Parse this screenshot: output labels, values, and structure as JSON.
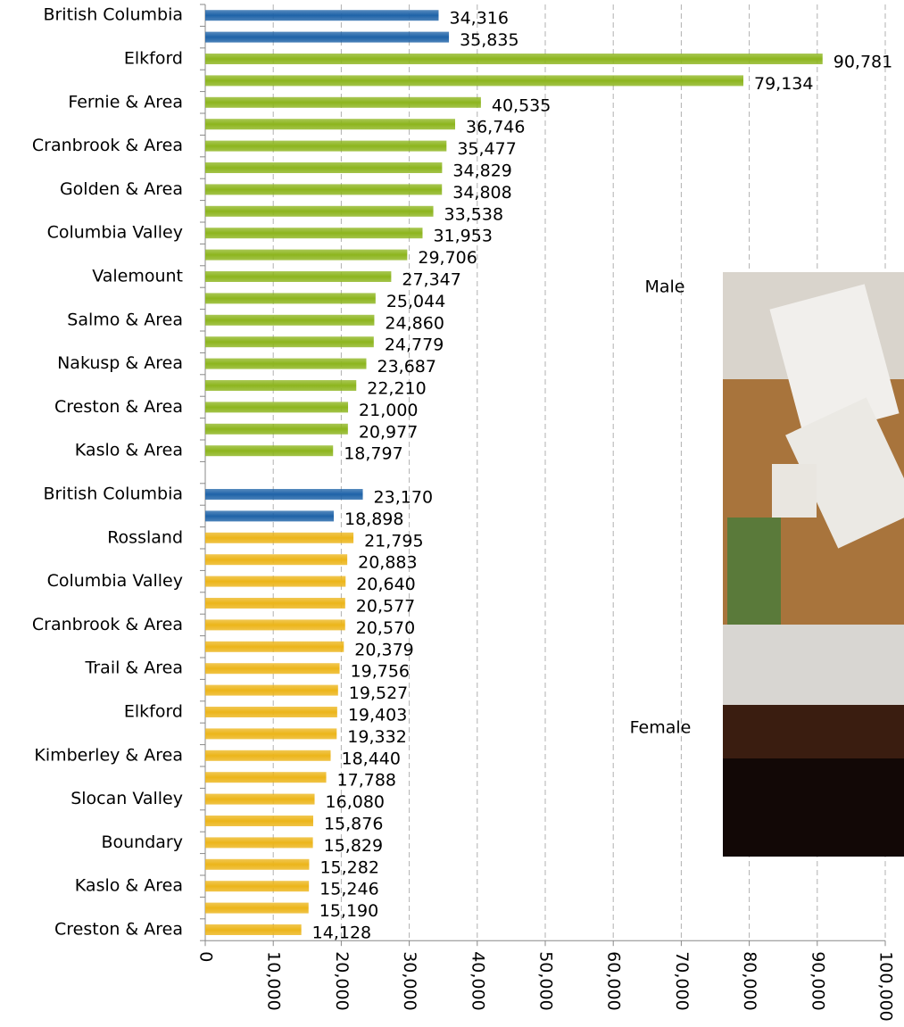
{
  "chart_data": {
    "type": "bar",
    "orientation": "horizontal",
    "categories": [
      "British Columbia",
      null,
      "Elkford",
      null,
      "Fernie & Area",
      null,
      "Cranbrook & Area",
      null,
      "Golden & Area",
      null,
      "Columbia Valley",
      null,
      "Valemount",
      null,
      "Salmo & Area",
      null,
      "Nakusp & Area",
      null,
      "Creston & Area",
      null,
      "Kaslo & Area",
      null,
      "British Columbia",
      null,
      "Rossland",
      null,
      "Columbia Valley",
      null,
      "Cranbrook & Area",
      null,
      "Trail & Area",
      null,
      "Elkford",
      null,
      "Kimberley & Area",
      null,
      "Slocan Valley",
      null,
      "Boundary",
      null,
      "Kaslo & Area",
      null,
      "Creston & Area"
    ],
    "values": [
      34316,
      35835,
      90781,
      79134,
      40535,
      36746,
      35477,
      34829,
      34808,
      33538,
      31953,
      29706,
      27347,
      25044,
      24860,
      24779,
      23687,
      22210,
      21000,
      20977,
      18797,
      null,
      23170,
      18898,
      21795,
      20883,
      20640,
      20577,
      20570,
      20379,
      19756,
      19527,
      19403,
      19332,
      18440,
      17788,
      16080,
      15876,
      15829,
      15282,
      15246,
      15190,
      14128
    ],
    "value_labels": [
      "34,316",
      "35,835",
      "90,781",
      "79,134",
      "40,535",
      "36,746",
      "35,477",
      "34,829",
      "34,808",
      "33,538",
      "31,953",
      "29,706",
      "27,347",
      "25,044",
      "24,860",
      "24,779",
      "23,687",
      "22,210",
      "21,000",
      "20,977",
      "18,797",
      null,
      "23,170",
      "18,898",
      "21,795",
      "20,883",
      "20,640",
      "20,577",
      "20,570",
      "20,379",
      "19,756",
      "19,527",
      "19,403",
      "19,332",
      "18,440",
      "17,788",
      "16,080",
      "15,876",
      "15,829",
      "15,282",
      "15,246",
      "15,190",
      "14,128"
    ],
    "colors": [
      "#1f63a8",
      "#1f63a8",
      "#8db51e",
      "#8db51e",
      "#8db51e",
      "#8db51e",
      "#8db51e",
      "#8db51e",
      "#8db51e",
      "#8db51e",
      "#8db51e",
      "#8db51e",
      "#8db51e",
      "#8db51e",
      "#8db51e",
      "#8db51e",
      "#8db51e",
      "#8db51e",
      "#8db51e",
      "#8db51e",
      "#8db51e",
      null,
      "#1f63a8",
      "#1f63a8",
      "#ecb51a",
      "#ecb51a",
      "#ecb51a",
      "#ecb51a",
      "#ecb51a",
      "#ecb51a",
      "#ecb51a",
      "#ecb51a",
      "#ecb51a",
      "#ecb51a",
      "#ecb51a",
      "#ecb51a",
      "#ecb51a",
      "#ecb51a",
      "#ecb51a",
      "#ecb51a",
      "#ecb51a",
      "#ecb51a",
      "#ecb51a"
    ],
    "xlim": [
      0,
      100000
    ],
    "xticks": [
      0,
      {
        "value": 10000,
        "label": "10,000"
      },
      {
        "value": 20000,
        "label": "20,000"
      },
      {
        "value": 30000,
        "label": "30,000"
      },
      {
        "value": 40000,
        "label": "40,000"
      },
      {
        "value": 50000,
        "label": "50,000"
      },
      {
        "value": 60000,
        "label": "60,000"
      },
      {
        "value": 70000,
        "label": "70,000"
      },
      {
        "value": 80000,
        "label": "80,000"
      },
      {
        "value": 90000,
        "label": "90,000"
      },
      {
        "value": 100000,
        "label": "100,000"
      }
    ],
    "grid": true,
    "annotations": [
      "Male",
      "Female"
    ]
  }
}
